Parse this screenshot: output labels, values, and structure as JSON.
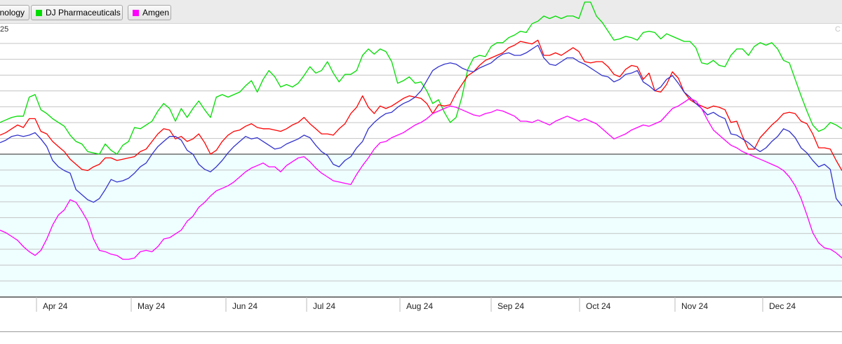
{
  "legend": [
    {
      "label": "nology",
      "color": "#333333",
      "swatch": false
    },
    {
      "label": "DJ Pharmaceuticals",
      "color": "#00dd00",
      "swatch": true
    },
    {
      "label": "Amgen",
      "color": "#ff00ff",
      "swatch": true
    }
  ],
  "scale_label": "25",
  "corner_label": "C",
  "chart_data": {
    "type": "line",
    "x_axis_labels": [
      "Apr 24",
      "May 24",
      "Jun 24",
      "Jul 24",
      "Aug 24",
      "Sep 24",
      "Oct 24",
      "Nov 24",
      "Dec 24"
    ],
    "x": [
      0,
      2,
      4,
      6,
      8,
      10,
      12,
      14,
      16,
      18,
      20,
      22,
      24,
      26,
      28,
      30,
      32,
      34,
      36,
      38,
      40,
      42,
      44,
      46,
      48,
      50,
      52,
      54,
      56,
      58,
      60,
      62,
      64,
      66,
      68,
      70,
      72,
      74,
      76,
      78,
      80,
      82,
      84,
      86,
      88,
      90,
      92,
      94,
      96,
      98,
      100,
      102,
      104,
      106,
      108,
      110,
      112,
      114,
      116,
      118,
      120,
      122,
      124,
      126,
      128,
      130,
      132,
      134,
      136,
      138,
      140,
      142,
      144,
      146,
      148,
      150,
      152,
      154,
      156,
      158,
      160,
      162,
      164,
      166,
      168,
      170,
      172,
      174,
      176,
      178,
      180,
      182,
      184,
      186,
      188,
      190,
      192,
      194,
      196,
      198,
      200,
      202,
      204,
      206,
      208,
      210,
      212,
      214,
      216,
      218,
      220,
      222,
      224,
      226,
      228,
      230,
      232,
      234,
      236,
      238,
      240,
      242,
      244,
      246,
      248,
      250,
      252,
      254,
      256,
      258,
      260,
      262,
      264,
      266,
      268,
      270,
      272,
      274,
      276,
      278,
      280,
      282,
      284,
      286,
      288
    ],
    "ylim": [
      -9,
      12.5
    ],
    "baseline": 0,
    "grid": true,
    "series": [
      {
        "color": "#00dd00",
        "values": [
          2.5,
          2.7,
          2.9,
          3.0,
          3.0,
          4.5,
          4.7,
          3.5,
          3.2,
          2.8,
          2.5,
          2.2,
          1.5,
          1.0,
          0.8,
          0.2,
          0.1,
          0.0,
          0.8,
          0.3,
          0.0,
          0.7,
          1.0,
          2.1,
          2.0,
          2.3,
          2.6,
          3.4,
          4.0,
          3.6,
          2.6,
          3.6,
          2.9,
          3.6,
          4.2,
          3.5,
          2.9,
          4.5,
          4.7,
          4.5,
          4.7,
          4.9,
          5.4,
          5.8,
          4.9,
          5.9,
          6.6,
          6.1,
          5.3,
          5.5,
          5.3,
          5.6,
          6.2,
          6.9,
          6.4,
          6.6,
          7.3,
          6.4,
          5.7,
          6.3,
          6.3,
          6.6,
          7.8,
          8.3,
          7.9,
          8.3,
          8.1,
          7.3,
          5.6,
          5.8,
          6.1,
          5.6,
          5.7,
          5.0,
          4.0,
          4.3,
          3.3,
          2.5,
          2.9,
          4.5,
          6.7,
          7.6,
          7.8,
          7.7,
          8.5,
          8.8,
          8.8,
          9.2,
          9.4,
          9.7,
          9.6,
          10.3,
          10.5,
          10.9,
          10.7,
          10.9,
          10.7,
          10.9,
          10.9,
          10.7,
          12.0,
          12.0,
          10.9,
          10.4,
          9.7,
          9.0,
          9.1,
          9.3,
          9.2,
          9.0,
          9.6,
          9.7,
          9.6,
          9.1,
          9.5,
          9.3,
          9.1,
          8.9,
          8.9,
          8.4,
          7.2,
          7.1,
          7.4,
          7.0,
          6.9,
          7.8,
          8.3,
          8.3,
          7.8,
          8.5,
          8.8,
          8.6,
          8.8,
          8.3,
          7.4,
          7.2,
          5.9,
          4.6,
          3.4,
          2.3,
          1.8,
          2.0,
          2.5,
          2.3,
          2.0
        ]
      },
      {
        "color": "#ff0000",
        "values": [
          1.5,
          1.7,
          2.0,
          2.3,
          2.1,
          2.8,
          2.8,
          1.8,
          1.6,
          1.0,
          0.6,
          0.2,
          -0.4,
          -0.8,
          -1.2,
          -1.3,
          -1.0,
          -0.8,
          -0.3,
          -0.3,
          -0.5,
          -0.4,
          -0.3,
          -0.2,
          0.2,
          0.4,
          1.0,
          1.6,
          2.0,
          1.9,
          1.2,
          1.4,
          1.0,
          1.2,
          1.6,
          0.9,
          0.0,
          0.3,
          1.0,
          1.5,
          1.8,
          1.9,
          2.2,
          2.4,
          2.1,
          2.0,
          2.0,
          1.9,
          1.8,
          2.0,
          2.3,
          2.5,
          2.9,
          2.4,
          2.0,
          1.6,
          1.6,
          1.5,
          2.0,
          2.4,
          3.2,
          3.7,
          4.6,
          3.7,
          3.2,
          3.8,
          3.6,
          3.8,
          4.1,
          4.4,
          4.6,
          4.5,
          4.4,
          4.0,
          3.2,
          3.9,
          3.8,
          3.9,
          4.8,
          5.5,
          6.2,
          6.5,
          7.0,
          7.4,
          7.6,
          7.8,
          8.0,
          8.4,
          8.6,
          8.9,
          8.8,
          8.7,
          9.0,
          7.8,
          7.8,
          8.0,
          7.8,
          8.1,
          8.4,
          8.1,
          7.3,
          7.2,
          7.3,
          7.3,
          6.9,
          6.3,
          6.1,
          6.7,
          7.0,
          6.9,
          5.9,
          6.4,
          5.0,
          4.9,
          5.5,
          6.5,
          6.0,
          4.9,
          4.3,
          4.0,
          3.8,
          3.6,
          3.8,
          3.7,
          3.5,
          2.5,
          2.6,
          1.4,
          0.4,
          0.4,
          1.3,
          1.8,
          2.3,
          2.7,
          3.2,
          3.3,
          3.2,
          2.6,
          2.4,
          1.6,
          0.5,
          0.5,
          0.4,
          -0.5,
          -1.3
        ]
      },
      {
        "color": "#3333cc",
        "values": [
          0.9,
          1.1,
          1.4,
          1.5,
          1.4,
          1.5,
          1.7,
          1.2,
          0.6,
          -0.5,
          -1.0,
          -1.3,
          -1.5,
          -2.8,
          -3.2,
          -3.6,
          -3.8,
          -3.5,
          -2.8,
          -2.0,
          -2.2,
          -2.1,
          -1.9,
          -1.5,
          -1.0,
          -0.7,
          0.0,
          0.6,
          1.0,
          1.4,
          1.4,
          1.1,
          0.3,
          0.0,
          -0.8,
          -1.2,
          -1.4,
          -1.0,
          -0.5,
          0.1,
          0.6,
          1.0,
          1.4,
          1.2,
          1.3,
          1.0,
          0.7,
          0.4,
          0.5,
          0.8,
          1.0,
          1.2,
          1.5,
          1.3,
          0.7,
          0.2,
          -0.1,
          -0.8,
          -1.0,
          -0.5,
          -0.2,
          0.5,
          1.0,
          2.0,
          2.5,
          2.9,
          3.2,
          3.3,
          3.7,
          4.0,
          4.2,
          4.5,
          5.0,
          5.8,
          6.6,
          6.9,
          7.1,
          7.2,
          7.1,
          6.8,
          6.6,
          6.5,
          6.8,
          7.0,
          7.2,
          7.6,
          7.9,
          8.0,
          7.8,
          7.8,
          8.0,
          8.3,
          8.6,
          7.6,
          7.1,
          7.0,
          7.3,
          7.6,
          7.6,
          7.3,
          7.1,
          6.8,
          6.5,
          6.2,
          6.1,
          5.7,
          5.9,
          6.3,
          6.4,
          6.6,
          5.7,
          5.4,
          5.0,
          5.3,
          5.9,
          6.2,
          5.6,
          4.9,
          4.5,
          4.0,
          3.6,
          3.1,
          3.3,
          3.0,
          2.8,
          1.6,
          1.5,
          1.2,
          0.9,
          0.5,
          0.2,
          0.5,
          1.0,
          1.4,
          2.0,
          1.8,
          1.3,
          0.5,
          0.1,
          -0.5,
          -1.0,
          -0.8,
          -1.2,
          -3.5,
          -4.1
        ]
      },
      {
        "color": "#ff00ff",
        "values": [
          -6.0,
          -6.2,
          -6.5,
          -6.8,
          -7.3,
          -7.7,
          -8.0,
          -7.6,
          -6.7,
          -5.6,
          -4.8,
          -4.4,
          -3.6,
          -3.8,
          -4.5,
          -5.3,
          -6.7,
          -7.6,
          -7.7,
          -7.9,
          -8.0,
          -8.3,
          -8.3,
          -8.2,
          -7.7,
          -7.6,
          -7.7,
          -7.3,
          -6.7,
          -6.6,
          -6.3,
          -6.0,
          -5.3,
          -4.9,
          -4.2,
          -3.8,
          -3.3,
          -2.9,
          -2.7,
          -2.5,
          -2.2,
          -1.8,
          -1.4,
          -1.1,
          -0.9,
          -0.7,
          -1.0,
          -1.0,
          -1.4,
          -0.9,
          -0.6,
          -0.3,
          -0.2,
          -0.6,
          -1.1,
          -1.5,
          -1.8,
          -2.1,
          -2.2,
          -2.3,
          -2.4,
          -1.6,
          -0.9,
          -0.3,
          0.4,
          0.9,
          1.0,
          1.3,
          1.5,
          1.7,
          2.0,
          2.3,
          2.5,
          2.8,
          3.2,
          3.4,
          3.6,
          3.8,
          3.7,
          3.5,
          3.3,
          3.1,
          3.0,
          3.2,
          3.3,
          3.5,
          3.4,
          3.2,
          3.0,
          2.6,
          2.6,
          2.5,
          2.7,
          2.5,
          2.3,
          2.6,
          2.8,
          3.0,
          2.8,
          2.6,
          2.8,
          2.6,
          2.4,
          2.0,
          1.6,
          1.2,
          1.4,
          1.6,
          1.9,
          2.1,
          2.3,
          2.2,
          2.4,
          2.6,
          3.1,
          3.6,
          3.8,
          4.1,
          4.4,
          4.2,
          3.6,
          2.7,
          1.9,
          1.5,
          1.1,
          0.7,
          0.5,
          0.2,
          0.0,
          -0.2,
          -0.4,
          -0.6,
          -0.8,
          -1.0,
          -1.3,
          -1.8,
          -2.5,
          -3.5,
          -4.8,
          -6.2,
          -7.0,
          -7.4,
          -7.5,
          -7.8,
          -8.2
        ]
      }
    ]
  }
}
